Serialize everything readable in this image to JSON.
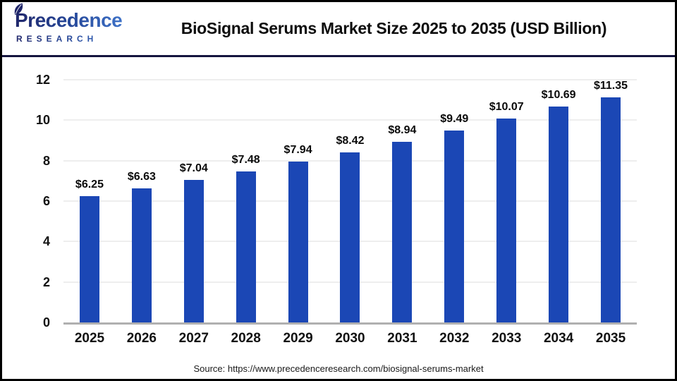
{
  "header": {
    "logo": {
      "wordmark": "Precedence",
      "subtext": "RESEARCH"
    },
    "title": "BioSignal Serums Market Size 2025 to 2035 (USD Billion)"
  },
  "chart_data": {
    "type": "bar",
    "title": "BioSignal Serums Market Size 2025 to 2035 (USD Billion)",
    "categories": [
      "2025",
      "2026",
      "2027",
      "2028",
      "2029",
      "2030",
      "2031",
      "2032",
      "2033",
      "2034",
      "2035"
    ],
    "values": [
      6.25,
      6.63,
      7.04,
      7.48,
      7.94,
      8.42,
      8.94,
      9.49,
      10.07,
      10.69,
      11.35
    ],
    "value_labels": [
      "$6.25",
      "$6.63",
      "$7.04",
      "$7.48",
      "$7.94",
      "$8.42",
      "$8.94",
      "$9.49",
      "$10.07",
      "$10.69",
      "$11.35"
    ],
    "unit": "USD Billion",
    "xlabel": "",
    "ylabel": "",
    "ylim": [
      0,
      12
    ],
    "yticks": [
      0,
      2,
      4,
      6,
      8,
      10,
      12
    ],
    "grid": true,
    "legend_position": "none",
    "bar_color": "#1B47B5"
  },
  "footer": {
    "source": "Source: https://www.precedenceresearch.com/biosignal-serums-market"
  },
  "colors": {
    "bar": "#1B47B5",
    "divider": "#15153f",
    "gridline": "#eeeeee",
    "axis_baseline": "#b0b0b0",
    "logo_navy": "#20266a",
    "logo_blue": "#4b87de"
  }
}
